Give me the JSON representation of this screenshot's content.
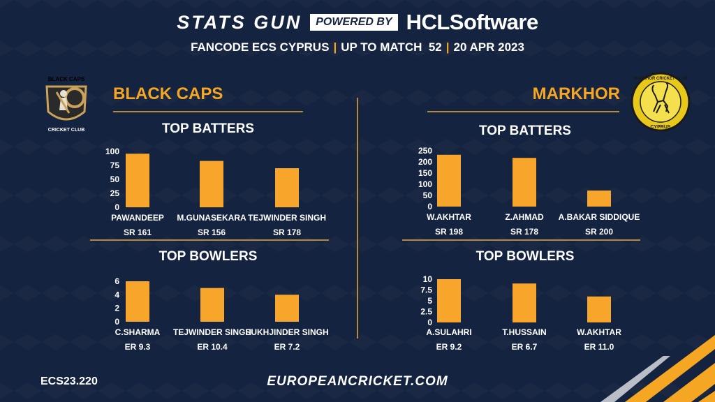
{
  "header": {
    "brand_stats": "STATS GUN",
    "brand_powered": "POWERED BY",
    "brand_hcl": "HCLSoftware",
    "sub_parts": [
      "FANCODE ECS CYPRUS",
      "UP TO MATCH  52",
      "20 APR 2023"
    ],
    "separator": "|"
  },
  "teams": {
    "left": {
      "name": "BLACK CAPS",
      "logo_text_top": "BLACK CAPS",
      "logo_text_bottom": "CRICKET CLUB"
    },
    "right": {
      "name": "MARKHOR",
      "logo_text_top": "MARKHOR CRICKET CLUB",
      "logo_text_bottom": "CYPRUS"
    }
  },
  "sections": {
    "left_batters_title": "TOP BATTERS",
    "left_bowlers_title": "TOP BOWLERS",
    "right_batters_title": "TOP BATTERS",
    "right_bowlers_title": "TOP BOWLERS"
  },
  "colors": {
    "bar": "#f7a52b",
    "accent": "#f5a623",
    "background": "#14233f",
    "divider": "#b58a3c"
  },
  "chart_data": [
    {
      "id": "left-batters",
      "type": "bar",
      "categories": [
        "PAWANDEEP",
        "M.GUNASEKARA",
        "TEJWINDER SINGH"
      ],
      "values": [
        96,
        83,
        70
      ],
      "sublabels": [
        "SR 161",
        "SR 156",
        "SR 178"
      ],
      "yticks": [
        0,
        25,
        50,
        75,
        100
      ],
      "ylim": [
        0,
        100
      ]
    },
    {
      "id": "left-bowlers",
      "type": "bar",
      "categories": [
        "C.SHARMA",
        "TEJWINDER SINGH",
        "SUKHJINDER SINGH"
      ],
      "values": [
        6,
        5,
        4
      ],
      "sublabels": [
        "ER 9.3",
        "ER 10.4",
        "ER 7.2"
      ],
      "yticks": [
        0,
        2,
        4,
        6
      ],
      "ylim": [
        0,
        6
      ]
    },
    {
      "id": "right-batters",
      "type": "bar",
      "categories": [
        "W.AKHTAR",
        "Z.AHMAD",
        "A.BAKAR SIDDIQUE"
      ],
      "values": [
        232,
        218,
        72
      ],
      "sublabels": [
        "SR 198",
        "SR 178",
        "SR 200"
      ],
      "yticks": [
        0,
        50,
        100,
        150,
        200,
        250
      ],
      "ylim": [
        0,
        250
      ]
    },
    {
      "id": "right-bowlers",
      "type": "bar",
      "categories": [
        "A.SULAHRI",
        "T.HUSSAIN",
        "W.AKHTAR"
      ],
      "values": [
        10,
        9,
        6
      ],
      "sublabels": [
        "ER 9.2",
        "ER 6.7",
        "ER 11.0"
      ],
      "yticks": [
        "0",
        "2.5",
        "5",
        "7.5",
        "10"
      ],
      "ylim": [
        0,
        10
      ]
    }
  ],
  "footer": {
    "code": "ECS23.220",
    "site": "EUROPEANCRICKET.COM"
  }
}
